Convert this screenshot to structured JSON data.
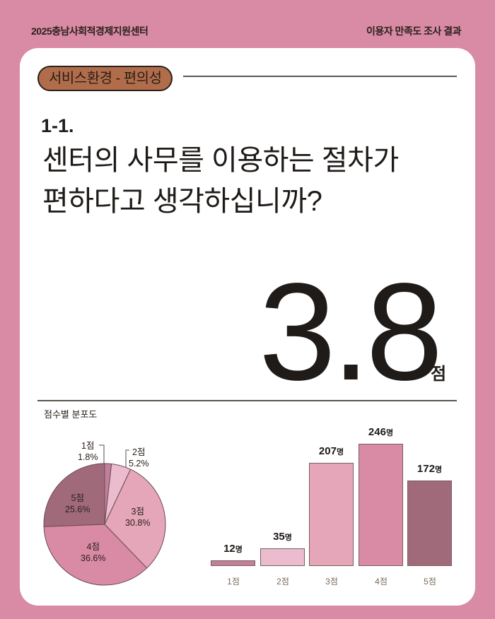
{
  "header": {
    "organization": "2025충남사회적경제지원센터",
    "report_title": "이용자 만족도 조사 결과"
  },
  "section": {
    "category_pill": "서비스환경 - 편의성"
  },
  "question": {
    "number": "1-1.",
    "line1": "센터의 사무를 이용하는 절차가",
    "line2": "편하다고 생각하십니까?"
  },
  "result": {
    "score": "3.8",
    "unit": "점"
  },
  "distribution": {
    "title": "점수별 분포도"
  },
  "colors": {
    "background": "#d98aa5",
    "pill": "#b16d4b",
    "s1": "#c27f9c",
    "s2": "#eabccd",
    "s3": "#e5a6ba",
    "s4": "#d98aa5",
    "s5": "#a06a7b"
  },
  "chart_data": [
    {
      "type": "pie",
      "title": "점수별 분포도",
      "categories": [
        "1점",
        "2점",
        "3점",
        "4점",
        "5점"
      ],
      "values": [
        1.8,
        5.2,
        30.8,
        36.6,
        25.6
      ],
      "labels": [
        "1.8%",
        "5.2%",
        "30.8%",
        "36.6%",
        "25.6%"
      ],
      "unit": "%"
    },
    {
      "type": "bar",
      "title": "",
      "categories": [
        "1점",
        "2점",
        "3점",
        "4점",
        "5점"
      ],
      "values": [
        12,
        35,
        207,
        246,
        172
      ],
      "value_labels": [
        "12",
        "35",
        "207",
        "246",
        "172"
      ],
      "value_unit": "명",
      "xlabel": "",
      "ylabel": "",
      "grid": false
    }
  ]
}
